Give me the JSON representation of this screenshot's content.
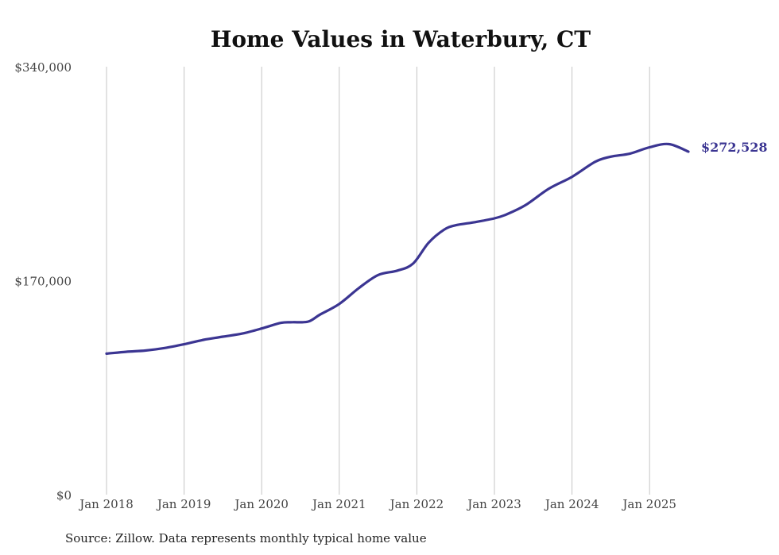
{
  "chart_data": {
    "type": "line",
    "title": "Home Values in Waterbury, CT",
    "xlabel": "",
    "ylabel": "",
    "ylim": [
      0,
      340000
    ],
    "yticks": [
      {
        "value": 0,
        "label": "$0"
      },
      {
        "value": 170000,
        "label": "$170,000"
      },
      {
        "value": 340000,
        "label": "$340,000"
      }
    ],
    "xlim": [
      2018.0,
      2025.5
    ],
    "xticks": [
      {
        "value": 2018,
        "label": "Jan 2018"
      },
      {
        "value": 2019,
        "label": "Jan 2019"
      },
      {
        "value": 2020,
        "label": "Jan 2020"
      },
      {
        "value": 2021,
        "label": "Jan 2021"
      },
      {
        "value": 2022,
        "label": "Jan 2022"
      },
      {
        "value": 2023,
        "label": "Jan 2023"
      },
      {
        "value": 2024,
        "label": "Jan 2024"
      },
      {
        "value": 2025,
        "label": "Jan 2025"
      }
    ],
    "grid": "vertical",
    "series": [
      {
        "name": "Typical home value",
        "color": "#3b3592",
        "end_label": "$272,528",
        "x": [
          2018.0,
          2018.25,
          2018.5,
          2018.75,
          2019.0,
          2019.25,
          2019.5,
          2019.75,
          2020.0,
          2020.25,
          2020.4,
          2020.6,
          2020.75,
          2021.0,
          2021.25,
          2021.5,
          2021.75,
          2021.95,
          2022.15,
          2022.35,
          2022.5,
          2022.75,
          2023.0,
          2023.15,
          2023.4,
          2023.7,
          2024.0,
          2024.3,
          2024.5,
          2024.75,
          2025.0,
          2025.25,
          2025.5
        ],
        "values": [
          112000,
          113500,
          114500,
          116500,
          119500,
          123000,
          125500,
          128000,
          132000,
          136500,
          137000,
          137500,
          143000,
          151500,
          164000,
          174500,
          178000,
          183500,
          200000,
          210500,
          214000,
          216500,
          219500,
          222500,
          230000,
          243000,
          252500,
          264500,
          268500,
          271000,
          276000,
          278500,
          272528
        ]
      }
    ]
  },
  "footer": {
    "source": "Source: Zillow. Data represents monthly typical home value"
  }
}
